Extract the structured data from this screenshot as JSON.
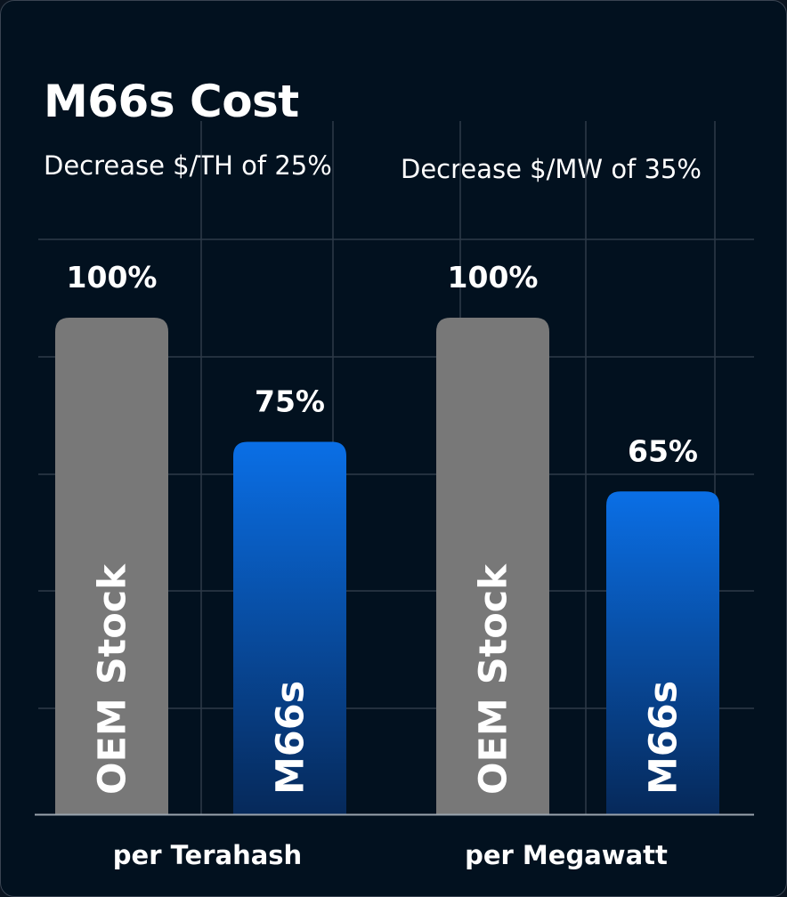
{
  "title": "M66s Cost",
  "colors": {
    "background": "#02111f",
    "oem_bar": "#787878",
    "m66s_gradient_top": "#0a6fe6",
    "m66s_gradient_bottom": "#06295a",
    "grid": "#2e3a48",
    "axis": "#9aa4ae",
    "text": "#ffffff"
  },
  "chart_data": {
    "type": "bar",
    "title": "M66s Cost",
    "unit": "%",
    "ylim": [
      0,
      100
    ],
    "grid": true,
    "groups": [
      {
        "subtitle": "Decrease $/TH of 25%",
        "xlabel": "per Terahash",
        "bars": [
          {
            "label": "OEM Stock",
            "value": 100,
            "value_label": "100%",
            "style": "oem"
          },
          {
            "label": "M66s",
            "value": 75,
            "value_label": "75%",
            "style": "m66s"
          }
        ]
      },
      {
        "subtitle": "Decrease $/MW of 35%",
        "xlabel": "per Megawatt",
        "bars": [
          {
            "label": "OEM Stock",
            "value": 100,
            "value_label": "100%",
            "style": "oem"
          },
          {
            "label": "M66s",
            "value": 65,
            "value_label": "65%",
            "style": "m66s"
          }
        ]
      }
    ]
  }
}
